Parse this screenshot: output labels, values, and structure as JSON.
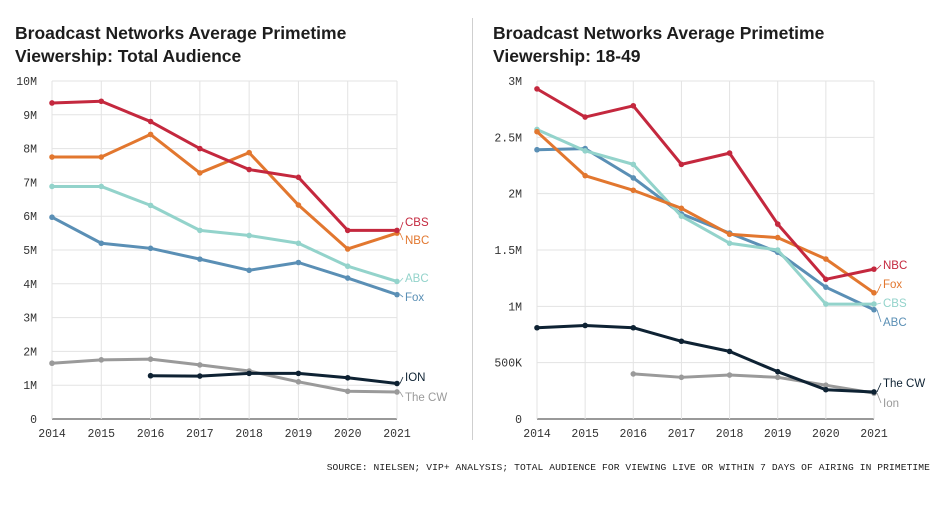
{
  "colors": {
    "NBC": "#c4283e",
    "CBS_left": "#c4283e",
    "ABC": "#93d3cb",
    "Fox": "#5a8fb5",
    "orange": "#e2772f",
    "ION": "#0e2233",
    "The CW": "#9a9a9a",
    "grid": "#e3e3e3",
    "axis": "#333333"
  },
  "chart_data": [
    {
      "type": "line",
      "title": "Broadcast Networks Average Primetime Viewership: Total Audience",
      "categories": [
        "2014",
        "2015",
        "2016",
        "2017",
        "2018",
        "2019",
        "2020",
        "2021"
      ],
      "ylim": [
        0,
        10
      ],
      "yticks": [
        0,
        1,
        2,
        3,
        4,
        5,
        6,
        7,
        8,
        9,
        10
      ],
      "ytick_labels": [
        "0",
        "1M",
        "2M",
        "3M",
        "4M",
        "5M",
        "6M",
        "7M",
        "8M",
        "9M",
        "10M"
      ],
      "xlabel": "",
      "ylabel": "",
      "series": [
        {
          "name": "CBS",
          "color": "#c4283e",
          "values": [
            9.35,
            9.4,
            8.8,
            8.0,
            7.38,
            7.15,
            5.58,
            5.58
          ]
        },
        {
          "name": "NBC",
          "color": "#e2772f",
          "values": [
            7.75,
            7.75,
            8.42,
            7.28,
            7.88,
            6.33,
            5.03,
            5.5
          ]
        },
        {
          "name": "ABC",
          "color": "#93d3cb",
          "values": [
            6.88,
            6.88,
            6.32,
            5.58,
            5.43,
            5.2,
            4.52,
            4.07
          ]
        },
        {
          "name": "Fox",
          "color": "#5a8fb5",
          "values": [
            5.97,
            5.2,
            5.05,
            4.73,
            4.4,
            4.63,
            4.17,
            3.68
          ]
        },
        {
          "name": "ION",
          "color": "#0e2233",
          "values": [
            null,
            null,
            1.28,
            1.27,
            1.35,
            1.35,
            1.22,
            1.05
          ]
        },
        {
          "name": "The CW",
          "color": "#9a9a9a",
          "values": [
            1.65,
            1.75,
            1.77,
            1.6,
            1.42,
            1.1,
            0.82,
            0.8
          ]
        }
      ],
      "end_labels": [
        "CBS",
        "NBC",
        "ABC",
        "Fox",
        "ION",
        "The CW"
      ]
    },
    {
      "type": "line",
      "title": "Broadcast Networks Average Primetime Viewership: 18-49",
      "categories": [
        "2014",
        "2015",
        "2016",
        "2017",
        "2018",
        "2019",
        "2020",
        "2021"
      ],
      "ylim": [
        0,
        3
      ],
      "yticks": [
        0,
        0.5,
        1,
        1.5,
        2,
        2.5,
        3
      ],
      "ytick_labels": [
        "0",
        "500K",
        "1M",
        "1.5M",
        "2M",
        "2.5M",
        "3M"
      ],
      "xlabel": "",
      "ylabel": "",
      "series": [
        {
          "name": "NBC",
          "color": "#c4283e",
          "values": [
            2.93,
            2.68,
            2.78,
            2.26,
            2.36,
            1.73,
            1.24,
            1.33
          ]
        },
        {
          "name": "Fox",
          "color": "#e2772f",
          "values": [
            2.55,
            2.16,
            2.03,
            1.87,
            1.64,
            1.61,
            1.42,
            1.12
          ]
        },
        {
          "name": "CBS",
          "color": "#93d3cb",
          "values": [
            2.57,
            2.38,
            2.26,
            1.8,
            1.56,
            1.5,
            1.02,
            1.02
          ]
        },
        {
          "name": "ABC",
          "color": "#5a8fb5",
          "values": [
            2.39,
            2.4,
            2.14,
            1.82,
            1.65,
            1.48,
            1.17,
            0.97
          ]
        },
        {
          "name": "The CW",
          "color": "#0e2233",
          "values": [
            0.81,
            0.83,
            0.81,
            0.69,
            0.6,
            0.42,
            0.26,
            0.24
          ]
        },
        {
          "name": "Ion",
          "color": "#9a9a9a",
          "values": [
            null,
            null,
            0.4,
            0.37,
            0.39,
            0.37,
            0.3,
            0.23
          ]
        }
      ],
      "end_labels": [
        "NBC",
        "Fox",
        "CBS",
        "ABC",
        "The CW",
        "Ion"
      ]
    }
  ],
  "source_note": "SOURCE: NIELSEN; VIP+ ANALYSIS; TOTAL AUDIENCE FOR VIEWING LIVE OR WITHIN 7 DAYS OF AIRING IN PRIMETIME"
}
